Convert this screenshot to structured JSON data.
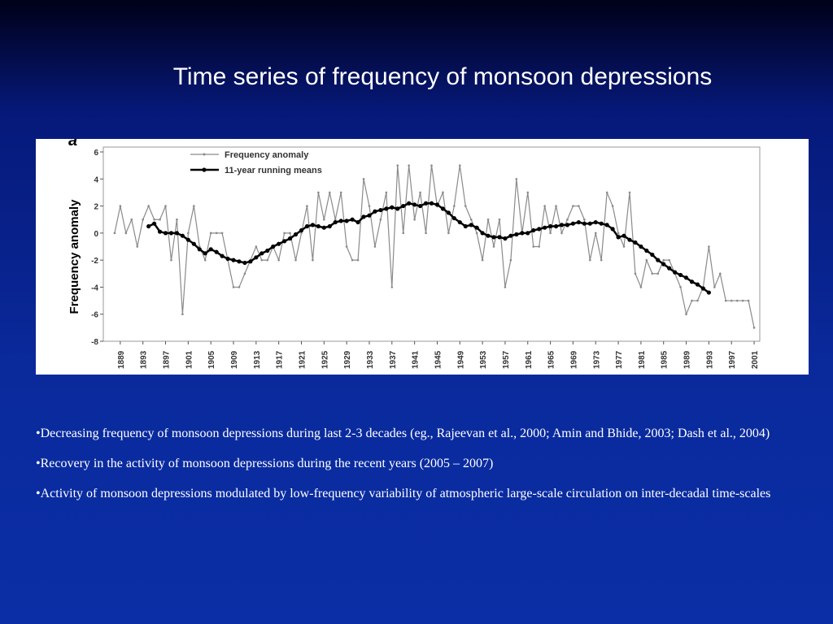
{
  "header": {
    "title": "Time series of frequency of monsoon depressions"
  },
  "chart_data": {
    "type": "line",
    "panel_label": "a",
    "ylabel": "Frequency anomaly",
    "x": [
      1888,
      1889,
      1890,
      1891,
      1892,
      1893,
      1894,
      1895,
      1896,
      1897,
      1898,
      1899,
      1900,
      1901,
      1902,
      1903,
      1904,
      1905,
      1906,
      1907,
      1908,
      1909,
      1910,
      1911,
      1912,
      1913,
      1914,
      1915,
      1916,
      1917,
      1918,
      1919,
      1920,
      1921,
      1922,
      1923,
      1924,
      1925,
      1926,
      1927,
      1928,
      1929,
      1930,
      1931,
      1932,
      1933,
      1934,
      1935,
      1936,
      1937,
      1938,
      1939,
      1940,
      1941,
      1942,
      1943,
      1944,
      1945,
      1946,
      1947,
      1948,
      1949,
      1950,
      1951,
      1952,
      1953,
      1954,
      1955,
      1956,
      1957,
      1958,
      1959,
      1960,
      1961,
      1962,
      1963,
      1964,
      1965,
      1966,
      1967,
      1968,
      1969,
      1970,
      1971,
      1972,
      1973,
      1974,
      1975,
      1976,
      1977,
      1978,
      1979,
      1980,
      1981,
      1982,
      1983,
      1984,
      1985,
      1986,
      1987,
      1988,
      1989,
      1990,
      1991,
      1992,
      1993,
      1994,
      1995,
      1996,
      1997,
      1998,
      1999,
      2000,
      2001
    ],
    "series": [
      {
        "name": "Frequency anomaly",
        "color": "#8a8a8a",
        "values": [
          0,
          2,
          0,
          1,
          -1,
          1,
          2,
          1,
          1,
          2,
          -2,
          1,
          -6,
          0,
          2,
          -1,
          -2,
          0,
          0,
          0,
          -2,
          -4,
          -4,
          -3,
          -2,
          -1,
          -2,
          -2,
          -1,
          -2,
          0,
          0,
          -2,
          0,
          2,
          -2,
          3,
          1,
          3,
          1,
          3,
          -1,
          -2,
          -2,
          4,
          2,
          -1,
          1,
          3,
          -4,
          5,
          0,
          5,
          1,
          3,
          0,
          5,
          2,
          3,
          0,
          2,
          5,
          2,
          1,
          0,
          -2,
          1,
          -1,
          1,
          -4,
          -2,
          4,
          0,
          3,
          -1,
          -1,
          2,
          0,
          2,
          0,
          1,
          2,
          2,
          1,
          -2,
          0,
          -2,
          3,
          2,
          0,
          -1,
          3,
          -3,
          -4,
          -2,
          -3,
          -3,
          -2,
          -2,
          -3,
          -4,
          -6,
          -5,
          -5,
          -4,
          -1,
          -4,
          -3,
          -5,
          -5,
          -5,
          -5,
          -5,
          -7
        ]
      },
      {
        "name": "11-year running means",
        "color": "#000000",
        "values": [
          null,
          null,
          null,
          null,
          null,
          null,
          0.5,
          0.7,
          0.1,
          0,
          0,
          0,
          -0.2,
          -0.5,
          -0.8,
          -1.2,
          -1.5,
          -1.2,
          -1.4,
          -1.7,
          -1.9,
          -2,
          -2.1,
          -2.2,
          -2.1,
          -1.8,
          -1.5,
          -1.3,
          -1,
          -0.8,
          -0.6,
          -0.4,
          -0.1,
          0.2,
          0.5,
          0.6,
          0.5,
          0.4,
          0.5,
          0.8,
          0.9,
          0.9,
          1.0,
          0.8,
          1.2,
          1.3,
          1.6,
          1.7,
          1.8,
          1.9,
          1.8,
          2.0,
          2.2,
          2.1,
          2.0,
          2.2,
          2.2,
          2.1,
          1.8,
          1.5,
          1.1,
          0.8,
          0.5,
          0.6,
          0.4,
          0,
          -0.2,
          -0.3,
          -0.3,
          -0.4,
          -0.2,
          -0.1,
          0,
          0,
          0.2,
          0.3,
          0.4,
          0.5,
          0.5,
          0.6,
          0.6,
          0.7,
          0.8,
          0.7,
          0.7,
          0.8,
          0.7,
          0.6,
          0.3,
          -0.3,
          -0.2,
          -0.5,
          -0.7,
          -1,
          -1.3,
          -1.6,
          -2,
          -2.3,
          -2.6,
          -2.9,
          -3.1,
          -3.3,
          -3.6,
          -3.8,
          -4.1,
          -4.4,
          null,
          null,
          null,
          null,
          null,
          null,
          null,
          null
        ]
      }
    ],
    "xlim": [
      1886,
      2002
    ],
    "xticks": [
      1889,
      1893,
      1897,
      1901,
      1905,
      1909,
      1913,
      1917,
      1921,
      1925,
      1929,
      1933,
      1937,
      1941,
      1945,
      1949,
      1953,
      1957,
      1961,
      1965,
      1969,
      1973,
      1977,
      1981,
      1985,
      1989,
      1993,
      1997,
      2001
    ],
    "ylim": [
      -8,
      6
    ],
    "yticks": [
      -8,
      -6,
      -4,
      -2,
      0,
      2,
      4,
      6
    ],
    "legend": "upper left"
  },
  "bullets": [
    "•Decreasing frequency of monsoon depressions during last 2-3 decades (eg., Rajeevan et al., 2000;  Amin and Bhide, 2003; Dash et al., 2004)",
    "•Recovery in the activity of monsoon depressions during the recent years (2005 – 2007)",
    "•Activity of monsoon depressions modulated by low-frequency variability of atmospheric large-scale circulation on inter-decadal time-scales"
  ]
}
